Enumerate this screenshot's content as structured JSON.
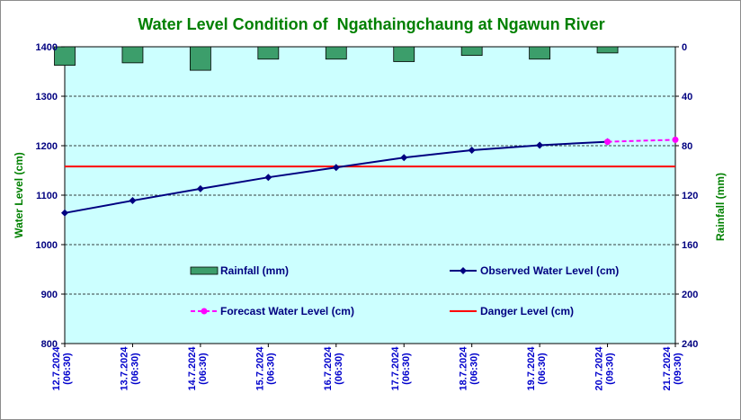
{
  "chart_data": {
    "type": "line",
    "title": "Water Level Condition of  Ngathaingchaung at Ngawun River",
    "ylabel": "Water Level (cm)",
    "y2label": "Rainfall (mm)",
    "ylim": [
      800,
      1400
    ],
    "yticks": [
      800,
      900,
      1000,
      1100,
      1200,
      1300,
      1400
    ],
    "y2lim": [
      0,
      240
    ],
    "y2ticks": [
      0,
      40,
      80,
      120,
      160,
      200,
      240
    ],
    "y2_inverted": true,
    "categories": [
      [
        "12.7.2024",
        "(06:30)"
      ],
      [
        "13.7.2024",
        "(06:30)"
      ],
      [
        "14.7.2024",
        "(06:30)"
      ],
      [
        "15.7.2024",
        "(06:30)"
      ],
      [
        "16.7.2024",
        "(06:30)"
      ],
      [
        "17.7.2024",
        "(06:30)"
      ],
      [
        "18.7.2024",
        "(06:30)"
      ],
      [
        "19.7.2024",
        "(06:30)"
      ],
      [
        "20.7.2024",
        "(09:30)"
      ],
      [
        "21.7.2024",
        "(09:30)"
      ]
    ],
    "series": [
      {
        "name": "Rainfall (mm)",
        "kind": "bar",
        "axis": "y2",
        "color": "#3c9e6b",
        "values": [
          15,
          13,
          19,
          10,
          10,
          12,
          7,
          10,
          5,
          null
        ]
      },
      {
        "name": "Observed Water Level (cm)",
        "kind": "line",
        "axis": "y",
        "color": "#000080",
        "marker": "diamond",
        "values": [
          1064,
          1089,
          1113,
          1136,
          1156,
          1176,
          1191,
          1201,
          1208,
          null
        ]
      },
      {
        "name": "Forecast Water Level (cm)",
        "kind": "line",
        "axis": "y",
        "color": "#ff00ff",
        "dashed": true,
        "marker": "circle",
        "values": [
          null,
          null,
          null,
          null,
          null,
          null,
          null,
          null,
          1208,
          1212
        ]
      },
      {
        "name": "Danger Level (cm)",
        "kind": "hline",
        "axis": "y",
        "color": "#ff0000",
        "value": 1158
      }
    ],
    "grid": true,
    "plot_background": "#ccffff",
    "legend_placement": "inside-lower-center"
  }
}
